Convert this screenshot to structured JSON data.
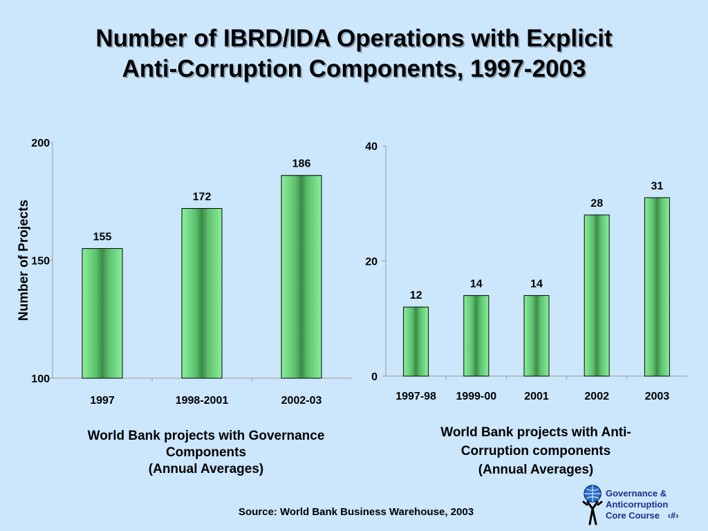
{
  "slide": {
    "title_line1": "Number of IBRD/IDA Operations with Explicit",
    "title_line2": "Anti-Corruption Components, 1997-2003",
    "source": "Source: World Bank Business Warehouse, 2003",
    "logo_line1": "Governance &",
    "logo_line2": "Anticorruption",
    "logo_line3": "Core Course",
    "page_marker": "‹#›",
    "logo_icon": "globe-figure-icon"
  },
  "chart_data": [
    {
      "type": "bar",
      "categories": [
        "1997",
        "1998-2001",
        "2002-03"
      ],
      "values": [
        155,
        172,
        186
      ],
      "ylabel": "Number of Projects",
      "ylim": [
        100,
        200
      ],
      "yticks": [
        100,
        150,
        200
      ],
      "caption_line1": "World Bank projects with Governance",
      "caption_line2": "Components",
      "caption_line3": "(Annual Averages)",
      "bar_color": "#7fe08f",
      "grid": false
    },
    {
      "type": "bar",
      "categories": [
        "1997-98",
        "1999-00",
        "2001",
        "2002",
        "2003"
      ],
      "values": [
        12,
        14,
        14,
        28,
        31
      ],
      "ylabel": "",
      "ylim": [
        0,
        40
      ],
      "yticks": [
        0,
        20,
        40
      ],
      "caption_line1": "World Bank projects with Anti-",
      "caption_line2": "Corruption components",
      "caption_line3": "(Annual Averages)",
      "bar_color": "#7fe08f",
      "grid": false
    }
  ]
}
